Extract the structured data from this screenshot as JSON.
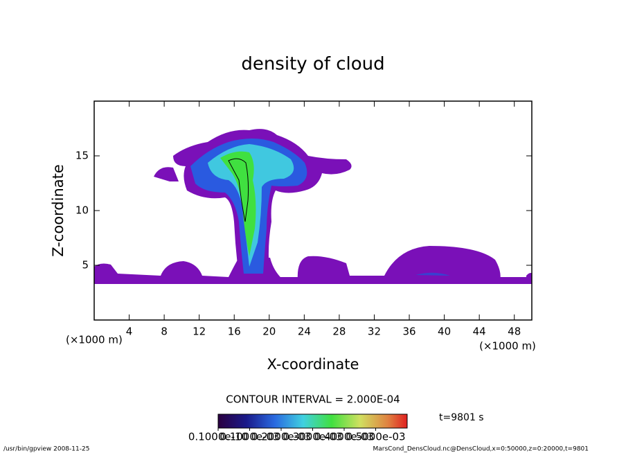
{
  "chart_data": {
    "type": "contour",
    "title": "density of cloud",
    "x_label": "X-coordinate",
    "y_label": "Z-coordinate",
    "x_unit": "(×1000 m)",
    "xlim": [
      0,
      50
    ],
    "xticks": [
      4,
      8,
      12,
      16,
      20,
      24,
      28,
      32,
      36,
      40,
      44,
      48
    ],
    "ylim": [
      0,
      20
    ],
    "yticks": [
      5,
      10,
      15
    ],
    "contour_interval": "CONTOUR INTERVAL = 2.000E-04",
    "time": "t=9801 s",
    "clim": [
      0,
      0.0006
    ],
    "cticks": [
      {
        "value": 1e-11,
        "label": "0.1000e-10"
      },
      {
        "value": 0.0001,
        "label": "0.1000e-03"
      },
      {
        "value": 0.0002,
        "label": "0.2000e-03"
      },
      {
        "value": 0.0003,
        "label": "0.3000e-03"
      },
      {
        "value": 0.0004,
        "label": "0.4000e-03"
      },
      {
        "value": 0.0005,
        "label": "0.5000e-03"
      }
    ],
    "footer_left": "/usr/bin/gpview  2008-11-25",
    "footer_right": "MarsCond_DensCloud.nc@DensCloud,x=0:50000,z=0:20000,t=9801"
  }
}
